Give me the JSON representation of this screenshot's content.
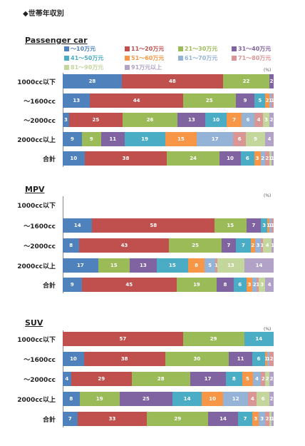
{
  "page_title": "◆世帯年収別",
  "unit_label": "(%)",
  "legend": [
    {
      "label": "〜10万元",
      "color": "#4f81bd"
    },
    {
      "label": "11〜20万元",
      "color": "#c0504d"
    },
    {
      "label": "21〜30万元",
      "color": "#9bbb59"
    },
    {
      "label": "31〜40万元",
      "color": "#8064a2"
    },
    {
      "label": "41〜50万元",
      "color": "#4bacc6"
    },
    {
      "label": "51〜60万元",
      "color": "#f79646"
    },
    {
      "label": "61〜70万元",
      "color": "#95b3d7"
    },
    {
      "label": "71〜80万元",
      "color": "#d99694"
    },
    {
      "label": "81〜90万元",
      "color": "#c3d69b"
    },
    {
      "label": "91万元以上",
      "color": "#b2a2c7"
    }
  ],
  "chart_data": [
    {
      "type": "bar",
      "stacked": "100%",
      "orientation": "horizontal",
      "title": "Passenger car",
      "categories": [
        "1000cc以下",
        "〜1600cc",
        "〜2000cc",
        "2000cc以上",
        "合計"
      ],
      "series": [
        {
          "name": "〜10万元",
          "values": [
            28,
            13,
            3,
            9,
            10
          ]
        },
        {
          "name": "11〜20万元",
          "values": [
            48,
            44,
            25,
            0,
            38
          ]
        },
        {
          "name": "21〜30万元",
          "values": [
            22,
            25,
            26,
            9,
            24
          ]
        },
        {
          "name": "31〜40万元",
          "values": [
            2,
            9,
            13,
            11,
            10
          ]
        },
        {
          "name": "41〜50万元",
          "values": [
            0,
            5,
            10,
            19,
            6
          ]
        },
        {
          "name": "51〜60万元",
          "values": [
            0,
            2,
            7,
            15,
            3
          ]
        },
        {
          "name": "61〜70万元",
          "values": [
            0,
            1,
            6,
            17,
            2
          ]
        },
        {
          "name": "71〜80万元",
          "values": [
            0,
            1,
            4,
            6,
            2
          ]
        },
        {
          "name": "81〜90万元",
          "values": [
            0,
            0,
            3,
            9,
            1
          ]
        },
        {
          "name": "91万元以上",
          "values": [
            0,
            0,
            2,
            4,
            1
          ]
        }
      ]
    },
    {
      "type": "bar",
      "stacked": "100%",
      "orientation": "horizontal",
      "title": "MPV",
      "categories": [
        "1000cc以下",
        "〜1600cc",
        "〜2000cc",
        "2000cc以上",
        "合計"
      ],
      "series": [
        {
          "name": "〜10万元",
          "values": [
            0,
            14,
            8,
            17,
            9
          ]
        },
        {
          "name": "11〜20万元",
          "values": [
            0,
            58,
            43,
            0,
            45
          ]
        },
        {
          "name": "21〜30万元",
          "values": [
            0,
            15,
            25,
            15,
            19
          ]
        },
        {
          "name": "31〜40万元",
          "values": [
            0,
            7,
            7,
            13,
            8
          ]
        },
        {
          "name": "41〜50万元",
          "values": [
            0,
            3,
            7,
            15,
            6
          ]
        },
        {
          "name": "51〜60万元",
          "values": [
            0,
            1,
            2,
            8,
            3
          ]
        },
        {
          "name": "61〜70万元",
          "values": [
            0,
            1,
            3,
            5,
            2
          ]
        },
        {
          "name": "71〜80万元",
          "values": [
            0,
            1,
            1,
            1,
            1
          ]
        },
        {
          "name": "81〜90万元",
          "values": [
            0,
            0,
            4,
            13,
            3
          ]
        },
        {
          "name": "91万元以上",
          "values": [
            0,
            0,
            1,
            14,
            4
          ]
        }
      ]
    },
    {
      "type": "bar",
      "stacked": "100%",
      "orientation": "horizontal",
      "title": "SUV",
      "categories": [
        "1000cc以下",
        "〜1600cc",
        "〜2000cc",
        "2000cc以上",
        "合計"
      ],
      "series": [
        {
          "name": "〜10万元",
          "values": [
            0,
            10,
            4,
            8,
            7
          ]
        },
        {
          "name": "11〜20万元",
          "values": [
            57,
            38,
            29,
            0,
            33
          ]
        },
        {
          "name": "21〜30万元",
          "values": [
            29,
            30,
            28,
            19,
            29
          ]
        },
        {
          "name": "31〜40万元",
          "values": [
            0,
            11,
            17,
            25,
            14
          ]
        },
        {
          "name": "41〜50万元",
          "values": [
            14,
            6,
            8,
            14,
            7
          ]
        },
        {
          "name": "51〜60万元",
          "values": [
            0,
            1,
            5,
            10,
            3
          ]
        },
        {
          "name": "61〜70万元",
          "values": [
            0,
            1,
            4,
            12,
            3
          ]
        },
        {
          "name": "71〜80万元",
          "values": [
            0,
            2,
            2,
            4,
            2
          ]
        },
        {
          "name": "81〜90万元",
          "values": [
            0,
            0,
            2,
            6,
            1
          ]
        },
        {
          "name": "91万元以上",
          "values": [
            0,
            0,
            2,
            2,
            1
          ]
        }
      ]
    }
  ]
}
